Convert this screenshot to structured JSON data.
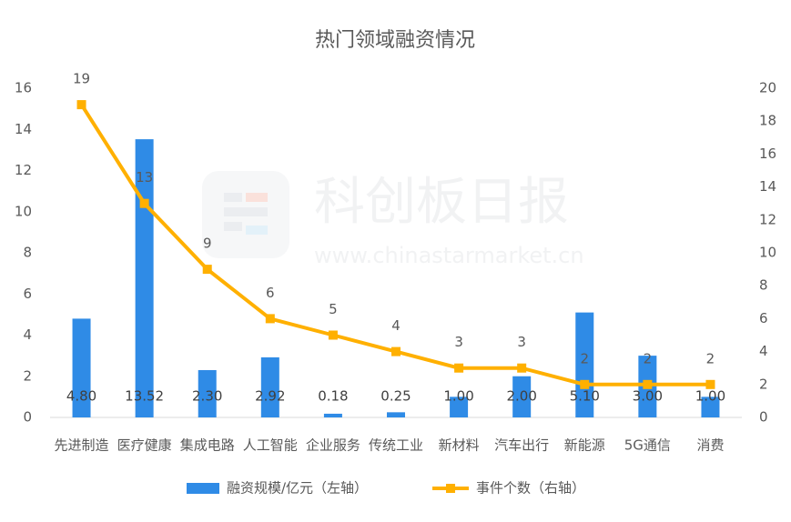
{
  "chart_data": {
    "type": "bar_line",
    "title": "热门领域融资情况",
    "categories": [
      "先进制造",
      "医疗健康",
      "集成电路",
      "人工智能",
      "企业服务",
      "传统工业",
      "新材料",
      "汽车出行",
      "新能源",
      "5G通信",
      "消费"
    ],
    "series": [
      {
        "name": "融资规模/亿元（左轴）",
        "color": "#2f8be6",
        "type": "bar",
        "values": [
          4.8,
          13.52,
          2.3,
          2.92,
          0.18,
          0.25,
          1.0,
          2.0,
          5.1,
          3.0,
          1.0
        ],
        "value_labels": [
          "4.80",
          "13.52",
          "2.30",
          "2.92",
          "0.18",
          "0.25",
          "1.00",
          "2.00",
          "5.10",
          "3.00",
          "1.00"
        ]
      },
      {
        "name": "事件个数（右轴）",
        "color": "#ffb000",
        "type": "line",
        "axis": "y2",
        "values": [
          19,
          13,
          9,
          6,
          5,
          4,
          3,
          3,
          2,
          2,
          2
        ]
      }
    ],
    "ylim": [
      0,
      16
    ],
    "yticks": [
      0,
      2,
      4,
      6,
      8,
      10,
      12,
      14,
      16
    ],
    "y2lim": [
      0,
      20
    ],
    "y2ticks": [
      0,
      2,
      4,
      6,
      8,
      10,
      12,
      14,
      16,
      18,
      20
    ],
    "grid": false,
    "watermark": {
      "text": "科创板日报",
      "url": "www.chinastarmarket.cn"
    }
  }
}
